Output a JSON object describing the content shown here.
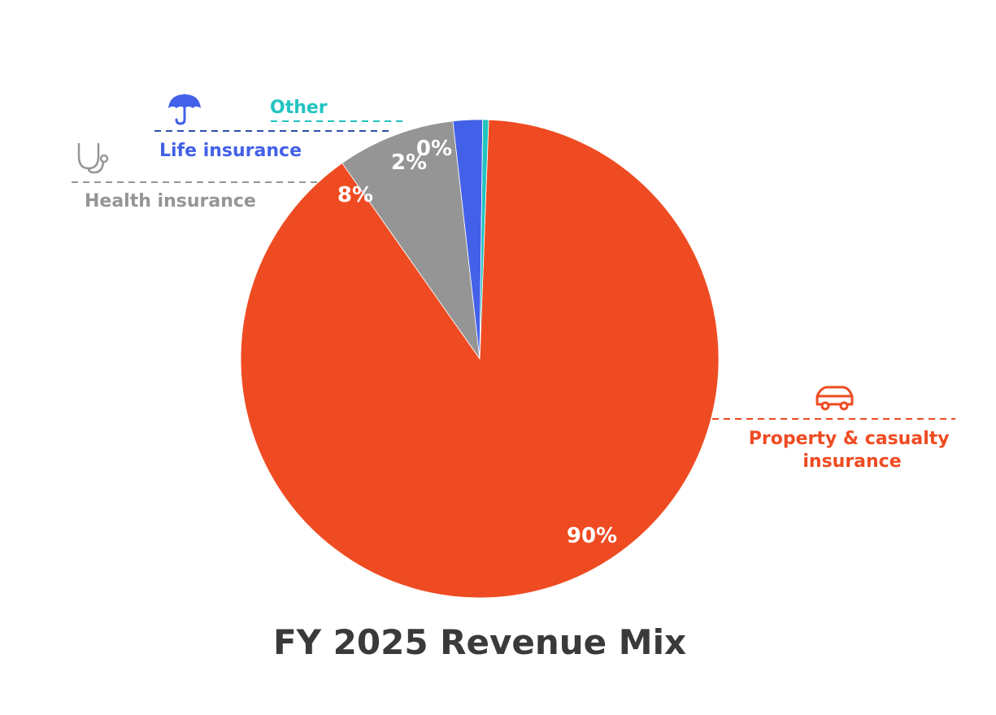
{
  "chart_data": {
    "type": "pie",
    "title": "FY 2025 Revenue Mix",
    "start_angle_deg": 0,
    "direction": "counterclockwise",
    "slices": [
      {
        "label": "Property & casualty insurance",
        "value": 90,
        "display": "90%",
        "color": "#ef4b22",
        "icon": "car-icon"
      },
      {
        "label": "Health insurance",
        "value": 8,
        "display": "8%",
        "color": "#959595",
        "icon": "stethoscope-icon"
      },
      {
        "label": "Life insurance",
        "value": 2,
        "display": "2%",
        "color": "#4361e8",
        "icon": "umbrella-icon"
      },
      {
        "label": "Other",
        "value": 0.4,
        "display": "0%",
        "color": "#22c3c0",
        "icon": ""
      }
    ]
  },
  "colors": {
    "title": "#3a3a3a",
    "slice_text": "#ffffff",
    "background": "#ffffff"
  }
}
